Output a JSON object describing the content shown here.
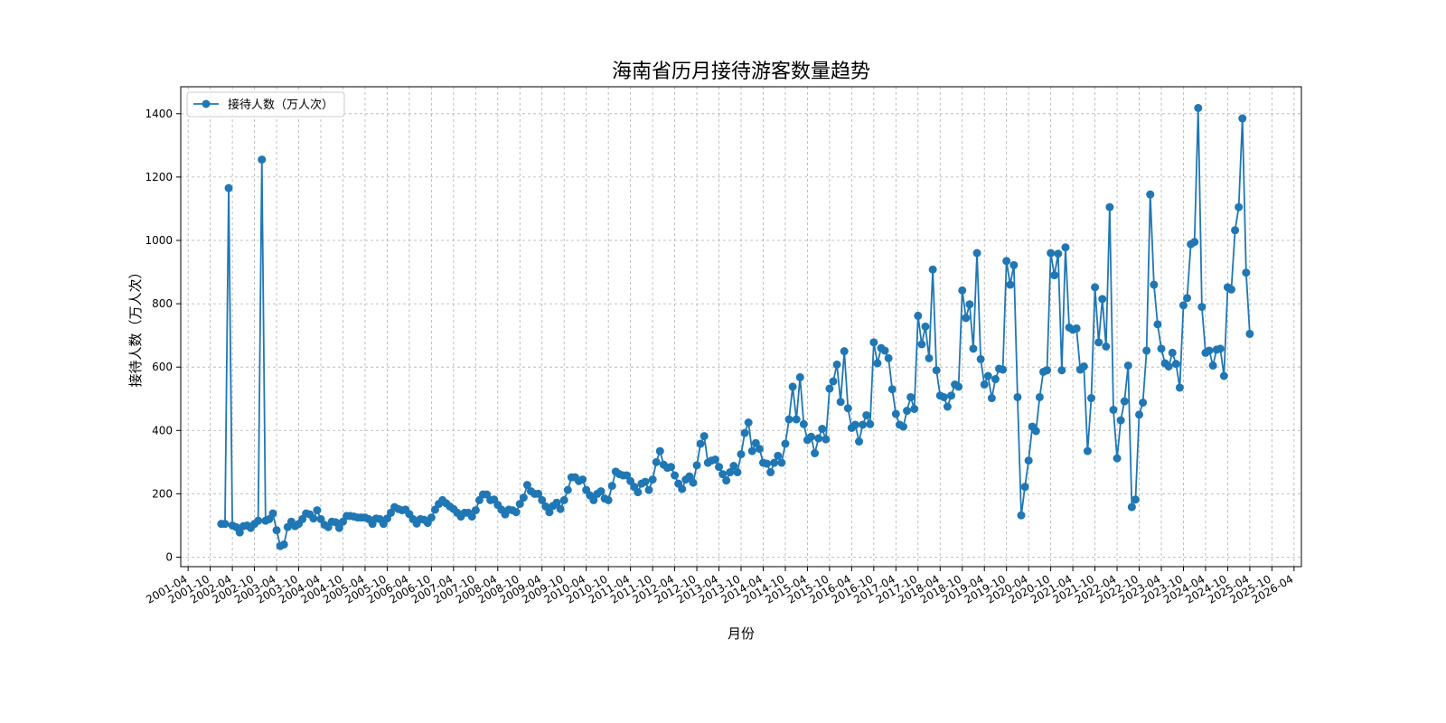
{
  "chart_data": {
    "type": "line",
    "title": "海南省历月接待游客数量趋势",
    "xlabel": "月份",
    "ylabel": "接待人数（万人次）",
    "legend": {
      "label": "接待人数（万人次）",
      "position": "top-left"
    },
    "grid": true,
    "line_color": "#1f77b4",
    "ylim": [
      -30,
      1485
    ],
    "xlim": [
      "2001-02",
      "2026-06"
    ],
    "y_ticks": [
      0,
      200,
      400,
      600,
      800,
      1000,
      1200,
      1400
    ],
    "x_ticks": [
      "2001-04",
      "2001-10",
      "2002-04",
      "2002-10",
      "2003-04",
      "2003-10",
      "2004-04",
      "2004-10",
      "2005-04",
      "2005-10",
      "2006-04",
      "2006-10",
      "2007-04",
      "2007-10",
      "2008-04",
      "2008-10",
      "2009-04",
      "2009-10",
      "2010-04",
      "2010-10",
      "2011-04",
      "2011-10",
      "2012-04",
      "2012-10",
      "2013-04",
      "2013-10",
      "2014-04",
      "2014-10",
      "2015-04",
      "2015-10",
      "2016-04",
      "2016-10",
      "2017-04",
      "2017-10",
      "2018-04",
      "2018-10",
      "2019-04",
      "2019-10",
      "2020-04",
      "2020-10",
      "2021-04",
      "2021-10",
      "2022-04",
      "2022-10",
      "2023-04",
      "2023-10",
      "2024-04",
      "2024-10",
      "2025-04",
      "2025-10",
      "2026-04"
    ],
    "series": [
      {
        "name": "接待人数（万人次）",
        "start": "2002-01",
        "values": [
          105,
          105,
          1165,
          100,
          95,
          78,
          98,
          100,
          92,
          105,
          115,
          1255,
          115,
          120,
          138,
          85,
          35,
          40,
          95,
          112,
          98,
          105,
          120,
          138,
          135,
          122,
          148,
          120,
          102,
          95,
          112,
          110,
          92,
          112,
          130,
          130,
          128,
          125,
          125,
          125,
          120,
          105,
          122,
          120,
          105,
          122,
          140,
          158,
          152,
          148,
          150,
          136,
          120,
          106,
          120,
          118,
          108,
          125,
          150,
          168,
          180,
          170,
          160,
          152,
          140,
          128,
          140,
          140,
          128,
          148,
          180,
          198,
          198,
          180,
          182,
          165,
          150,
          135,
          150,
          148,
          142,
          168,
          188,
          228,
          208,
          200,
          200,
          180,
          160,
          142,
          162,
          172,
          152,
          180,
          212,
          252,
          252,
          240,
          245,
          212,
          195,
          180,
          200,
          208,
          185,
          180,
          225,
          270,
          262,
          258,
          258,
          240,
          222,
          205,
          232,
          238,
          212,
          245,
          300,
          335,
          292,
          282,
          285,
          258,
          232,
          215,
          245,
          255,
          235,
          290,
          358,
          382,
          298,
          305,
          308,
          285,
          262,
          242,
          268,
          288,
          268,
          325,
          392,
          425,
          335,
          360,
          342,
          298,
          295,
          268,
          298,
          320,
          298,
          358,
          435,
          538,
          435,
          568,
          420,
          370,
          380,
          328,
          375,
          405,
          372,
          532,
          555,
          608,
          490,
          650,
          470,
          408,
          418,
          365,
          418,
          448,
          420,
          678,
          612,
          660,
          652,
          628,
          530,
          452,
          418,
          412,
          462,
          505,
          468,
          762,
          672,
          728,
          628,
          908,
          590,
          510,
          505,
          475,
          510,
          545,
          538,
          842,
          755,
          798,
          658,
          960,
          625,
          545,
          572,
          502,
          562,
          595,
          592,
          935,
          860,
          922,
          505,
          132,
          222,
          305,
          412,
          398,
          505,
          585,
          590,
          960,
          890,
          958,
          590,
          978,
          725,
          718,
          722,
          592,
          602,
          335,
          502,
          852,
          678,
          815,
          665,
          1105,
          465,
          312,
          432,
          492,
          605,
          158,
          182,
          450,
          488,
          652,
          1145,
          860,
          735,
          658,
          612,
          602,
          645,
          610,
          535,
          795,
          818,
          988,
          995,
          1418,
          790,
          645,
          652,
          605,
          655,
          658,
          572,
          852,
          845,
          1032,
          1105,
          1385,
          898,
          705
        ]
      }
    ]
  }
}
